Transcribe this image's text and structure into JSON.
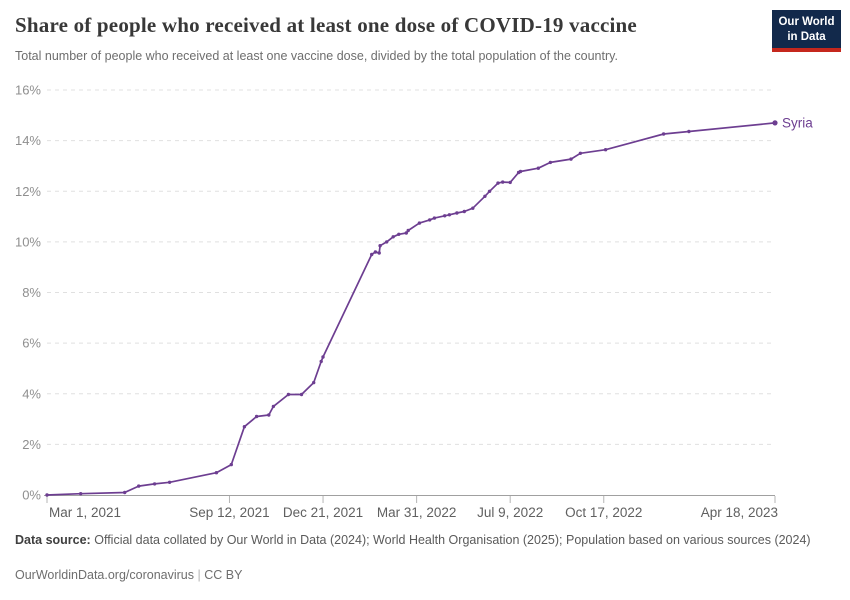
{
  "header": {
    "title": "Share of people who received at least one dose of COVID-19 vaccine",
    "subtitle": "Total number of people who received at least one vaccine dose, divided by the total population of the country.",
    "logo": {
      "line1": "Our World",
      "line2": "in Data",
      "bg_color": "#12294b",
      "accent_color": "#c5271d"
    }
  },
  "chart_data": {
    "type": "line",
    "title": "Share of people who received at least one dose of COVID-19 vaccine",
    "xlabel": "",
    "ylabel": "",
    "ylim": [
      0,
      16
    ],
    "grid": "dashed-horizontal",
    "legend_position": "end-of-line",
    "y_ticks": [
      {
        "value": 0,
        "label": "0%"
      },
      {
        "value": 2,
        "label": "2%"
      },
      {
        "value": 4,
        "label": "4%"
      },
      {
        "value": 6,
        "label": "6%"
      },
      {
        "value": 8,
        "label": "8%"
      },
      {
        "value": 10,
        "label": "10%"
      },
      {
        "value": 12,
        "label": "12%"
      },
      {
        "value": 14,
        "label": "14%"
      },
      {
        "value": 16,
        "label": "16%"
      }
    ],
    "x_domain": [
      "2021-03-01",
      "2023-04-18"
    ],
    "x_ticks": [
      {
        "date": "2021-03-01",
        "label": "Mar 1, 2021"
      },
      {
        "date": "2021-09-12",
        "label": "Sep 12, 2021"
      },
      {
        "date": "2021-12-21",
        "label": "Dec 21, 2021"
      },
      {
        "date": "2022-03-31",
        "label": "Mar 31, 2022"
      },
      {
        "date": "2022-07-09",
        "label": "Jul 9, 2022"
      },
      {
        "date": "2022-10-17",
        "label": "Oct 17, 2022"
      },
      {
        "date": "2023-04-18",
        "label": "Apr 18, 2023"
      }
    ],
    "colors": {
      "gridline": "#e0e0e0",
      "axis_baseline": "#a0a0a0",
      "tick_mark": "#b5b5b5",
      "y_tick_label": "#8f8f8f",
      "x_tick_label": "#606060"
    },
    "series": [
      {
        "name": "Syria",
        "color": "#6d3e91",
        "points": [
          [
            "2021-03-01",
            0.0
          ],
          [
            "2021-04-06",
            0.05
          ],
          [
            "2021-05-23",
            0.1
          ],
          [
            "2021-06-07",
            0.35
          ],
          [
            "2021-06-24",
            0.44
          ],
          [
            "2021-07-10",
            0.5
          ],
          [
            "2021-08-29",
            0.88
          ],
          [
            "2021-09-14",
            1.2
          ],
          [
            "2021-09-28",
            2.7
          ],
          [
            "2021-10-11",
            3.1
          ],
          [
            "2021-10-24",
            3.16
          ],
          [
            "2021-10-29",
            3.5
          ],
          [
            "2021-11-14",
            3.97
          ],
          [
            "2021-11-28",
            3.97
          ],
          [
            "2021-12-11",
            4.44
          ],
          [
            "2021-12-19",
            5.28
          ],
          [
            "2021-12-21",
            5.45
          ],
          [
            "2022-02-11",
            9.5
          ],
          [
            "2022-02-15",
            9.6
          ],
          [
            "2022-02-19",
            9.56
          ],
          [
            "2022-02-20",
            9.85
          ],
          [
            "2022-02-27",
            10.0
          ],
          [
            "2022-03-06",
            10.2
          ],
          [
            "2022-03-12",
            10.3
          ],
          [
            "2022-03-20",
            10.35
          ],
          [
            "2022-03-22",
            10.45
          ],
          [
            "2022-04-03",
            10.74
          ],
          [
            "2022-04-14",
            10.87
          ],
          [
            "2022-04-19",
            10.94
          ],
          [
            "2022-04-30",
            11.03
          ],
          [
            "2022-05-05",
            11.07
          ],
          [
            "2022-05-13",
            11.14
          ],
          [
            "2022-05-21",
            11.2
          ],
          [
            "2022-05-30",
            11.33
          ],
          [
            "2022-06-12",
            11.8
          ],
          [
            "2022-06-17",
            12.0
          ],
          [
            "2022-06-26",
            12.32
          ],
          [
            "2022-07-01",
            12.36
          ],
          [
            "2022-07-09",
            12.35
          ],
          [
            "2022-07-18",
            12.74
          ],
          [
            "2022-07-20",
            12.78
          ],
          [
            "2022-08-08",
            12.91
          ],
          [
            "2022-08-21",
            13.14
          ],
          [
            "2022-09-12",
            13.27
          ],
          [
            "2022-09-22",
            13.5
          ],
          [
            "2022-10-19",
            13.64
          ],
          [
            "2022-12-20",
            14.26
          ],
          [
            "2023-01-16",
            14.36
          ],
          [
            "2023-04-18",
            14.7
          ]
        ]
      }
    ]
  },
  "footer": {
    "source_label": "Data source:",
    "source_text": "Official data collated by Our World in Data (2024); World Health Organisation (2025); Population based on various sources (2024)",
    "url": "OurWorldinData.org/coronavirus",
    "separator": " | ",
    "license": "CC BY"
  }
}
